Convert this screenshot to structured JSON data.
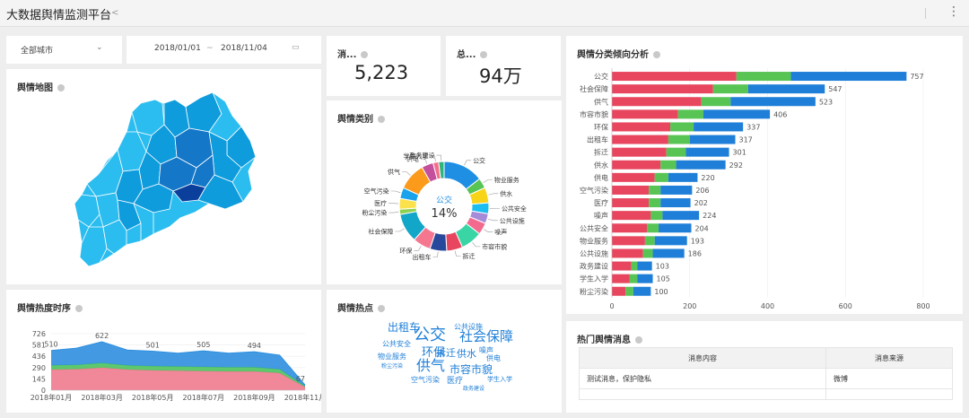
{
  "header": {
    "title": "大数据舆情监测平台",
    "share_icon": "share-icon",
    "more_icon": "more-vertical-icon"
  },
  "filters": {
    "city": "全部城市",
    "date_from": "2018/01/01",
    "date_sep": "~",
    "date_to": "2018/11/04",
    "calendar_icon": "calendar-icon"
  },
  "kpi": [
    {
      "label": "消...",
      "value": "5,223"
    },
    {
      "label": "总...",
      "value": "94万"
    }
  ],
  "map": {
    "title": "舆情地图",
    "colors": {
      "light": "#2bbdf0",
      "mid": "#0f9cdc",
      "dark": "#1477c8",
      "deep": "#0a3f9c"
    }
  },
  "category_chart": {
    "title": "舆情类别"
  },
  "heat_chart": {
    "title": "舆情热度时序"
  },
  "hotspots": {
    "title": "舆情热点",
    "words": [
      {
        "text": "出租车",
        "size": 12
      },
      {
        "text": "公交",
        "size": 18
      },
      {
        "text": "社会保障",
        "size": 15
      },
      {
        "text": "公共设施",
        "size": 8
      },
      {
        "text": "公共安全",
        "size": 8
      },
      {
        "text": "环保",
        "size": 13
      },
      {
        "text": "拆迁",
        "size": 11
      },
      {
        "text": "供水",
        "size": 11
      },
      {
        "text": "噪声",
        "size": 8
      },
      {
        "text": "物业服务",
        "size": 8
      },
      {
        "text": "供电",
        "size": 8
      },
      {
        "text": "粉尘污染",
        "size": 6
      },
      {
        "text": "供气",
        "size": 16
      },
      {
        "text": "市容市貌",
        "size": 12
      },
      {
        "text": "空气污染",
        "size": 8
      },
      {
        "text": "医疗",
        "size": 9
      },
      {
        "text": "学生入学",
        "size": 7
      },
      {
        "text": "政务建设",
        "size": 6
      }
    ]
  },
  "trend_chart": {
    "title": "舆情分类倾向分析"
  },
  "messages": {
    "title": "热门舆情消息",
    "columns": [
      "消息内容",
      "消息来源"
    ],
    "rows": [
      {
        "content": "测试消息，保护隐私",
        "source": "微博"
      }
    ]
  },
  "chart_data": [
    {
      "type": "pie",
      "variant": "donut",
      "center_label": "公交",
      "center_value": "14%",
      "categories": [
        "公交",
        "物业服务",
        "供水",
        "公共安全",
        "公共设施",
        "噪声",
        "市容市貌",
        "拆迁",
        "出租车",
        "环保",
        "社会保障",
        "粉尘污染",
        "医疗",
        "空气污染",
        "供气",
        "供电",
        "学生入学",
        "政务建设"
      ],
      "values": [
        757,
        193,
        292,
        204,
        186,
        224,
        406,
        301,
        317,
        337,
        547,
        100,
        202,
        206,
        523,
        220,
        105,
        103
      ],
      "colors": [
        "#1f8fe3",
        "#58c454",
        "#f7d417",
        "#1bbef0",
        "#a68bd8",
        "#f26b8f",
        "#3ad5a5",
        "#e8465f",
        "#28489c",
        "#f5768f",
        "#12a6c8",
        "#8fd14f",
        "#fbe14b",
        "#1aa2ea",
        "#fb9a1b",
        "#c44f9c",
        "#f56f8b",
        "#2fb47a"
      ]
    },
    {
      "type": "area",
      "stacked": true,
      "x": [
        "2018年01月",
        "2018年02月",
        "2018年03月",
        "2018年04月",
        "2018年05月",
        "2018年06月",
        "2018年07月",
        "2018年08月",
        "2018年09月",
        "2018年10月",
        "2018年11月"
      ],
      "xticks": [
        "2018年01月",
        "2018年03月",
        "2018年05月",
        "2018年07月",
        "2018年09月",
        "2018年11月"
      ],
      "yticks": [
        0,
        145,
        290,
        436,
        581,
        726
      ],
      "ylim": [
        0,
        726
      ],
      "series": [
        {
          "color": "#f07b8e",
          "values": [
            265,
            270,
            290,
            265,
            255,
            250,
            245,
            240,
            240,
            220,
            40
          ]
        },
        {
          "color": "#4dc25f",
          "values": [
            55,
            55,
            60,
            55,
            55,
            55,
            55,
            55,
            55,
            50,
            12
          ]
        },
        {
          "color": "#2f8fdf",
          "values": [
            190,
            215,
            272,
            196,
            191,
            170,
            205,
            180,
            199,
            180,
            15
          ]
        }
      ],
      "totals": [
        510,
        540,
        622,
        516,
        501,
        475,
        505,
        475,
        494,
        450,
        67
      ],
      "point_labels": [
        {
          "index": 0,
          "text": "510"
        },
        {
          "index": 2,
          "text": "622"
        },
        {
          "index": 4,
          "text": "501"
        },
        {
          "index": 6,
          "text": "505"
        },
        {
          "index": 8,
          "text": "494"
        },
        {
          "index": 10,
          "text": "67"
        }
      ]
    },
    {
      "type": "bar",
      "orientation": "horizontal",
      "stacked": true,
      "categories": [
        "公交",
        "社会保障",
        "供气",
        "市容市貌",
        "环保",
        "出租车",
        "拆迁",
        "供水",
        "供电",
        "空气污染",
        "医疗",
        "噪声",
        "公共安全",
        "物业服务",
        "公共设施",
        "政务建设",
        "学生入学",
        "粉尘污染"
      ],
      "series": [
        {
          "color": "#e8465f",
          "values": [
            320,
            260,
            230,
            170,
            150,
            145,
            140,
            125,
            110,
            95,
            95,
            100,
            90,
            85,
            80,
            50,
            45,
            35
          ]
        },
        {
          "color": "#58c454",
          "values": [
            140,
            90,
            75,
            65,
            60,
            55,
            50,
            40,
            35,
            30,
            30,
            30,
            30,
            25,
            25,
            15,
            20,
            20
          ]
        },
        {
          "color": "#1f7fd8",
          "values": [
            297,
            197,
            218,
            171,
            127,
            117,
            111,
            127,
            75,
            81,
            77,
            94,
            84,
            83,
            81,
            38,
            40,
            45
          ]
        }
      ],
      "totals": [
        757,
        547,
        523,
        406,
        337,
        317,
        301,
        292,
        220,
        206,
        202,
        224,
        204,
        193,
        186,
        103,
        105,
        100
      ],
      "xticks": [
        0,
        200,
        400,
        600,
        800
      ],
      "xlim": [
        0,
        800
      ]
    }
  ]
}
